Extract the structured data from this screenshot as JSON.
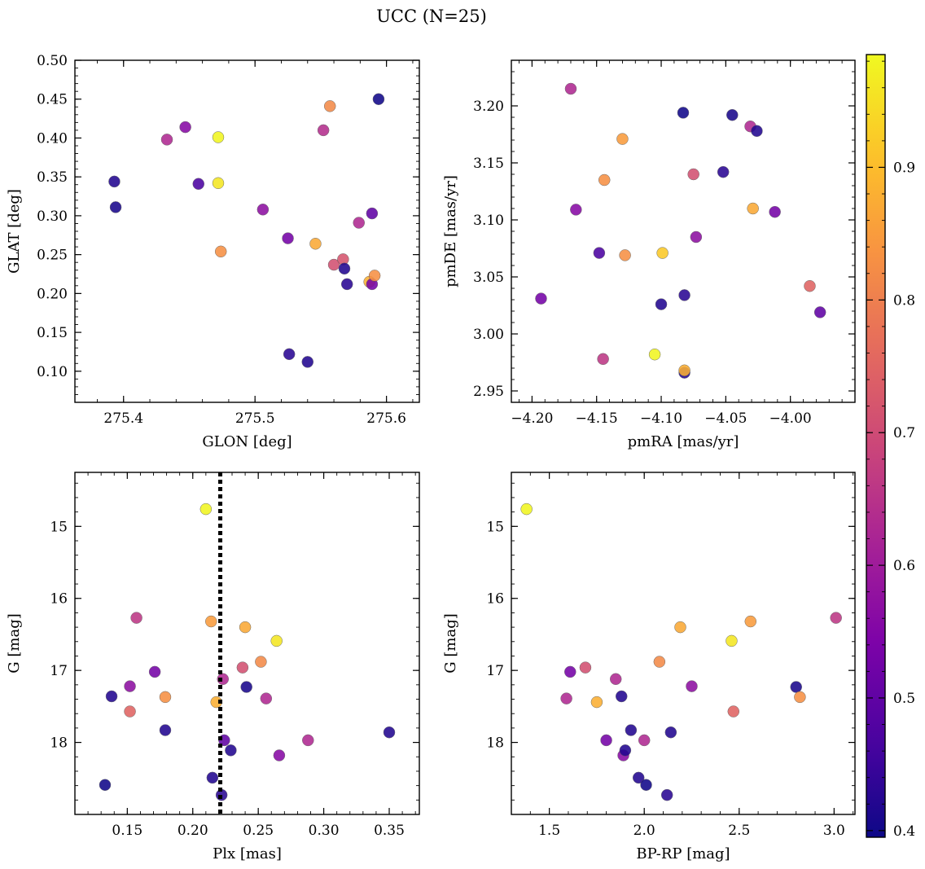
{
  "figure": {
    "title": "UCC (N=25)",
    "colorbar": {
      "range": [
        0.395,
        0.985
      ],
      "ticks": [
        0.4,
        0.5,
        0.6,
        0.7,
        0.8,
        0.9
      ],
      "tick_labels": [
        "0.4",
        "0.5",
        "0.6",
        "0.7",
        "0.8",
        "0.9"
      ],
      "colormap": "plasma"
    }
  },
  "chart_data": [
    {
      "type": "scatter",
      "xlabel": "GLON [deg]",
      "ylabel": "GLAT [deg]",
      "xlim": [
        275.363,
        275.625
      ],
      "ylim": [
        0.06,
        0.5
      ],
      "xticks": [
        275.4,
        275.5,
        275.6
      ],
      "xtick_labels": [
        "275.4",
        "275.5",
        "275.6"
      ],
      "xminor": 0.02,
      "yticks": [
        0.1,
        0.15,
        0.2,
        0.25,
        0.3,
        0.35,
        0.4,
        0.45,
        0.5
      ],
      "ytick_labels": [
        "0.10",
        "0.15",
        "0.20",
        "0.25",
        "0.30",
        "0.35",
        "0.40",
        "0.45",
        "0.50"
      ],
      "yminor": 0.01,
      "invert_y": false,
      "x": [
        275.393,
        275.394,
        275.433,
        275.447,
        275.457,
        275.472,
        275.472,
        275.474,
        275.506,
        275.525,
        275.526,
        275.54,
        275.546,
        275.552,
        275.557,
        275.56,
        275.567,
        275.568,
        275.57,
        275.579,
        275.587,
        275.589,
        275.589,
        275.591,
        275.594
      ],
      "y": [
        0.344,
        0.311,
        0.398,
        0.414,
        0.341,
        0.401,
        0.342,
        0.254,
        0.308,
        0.271,
        0.122,
        0.112,
        0.264,
        0.41,
        0.441,
        0.237,
        0.244,
        0.232,
        0.212,
        0.291,
        0.215,
        0.212,
        0.303,
        0.223,
        0.45
      ],
      "c": [
        0.42,
        0.41,
        0.63,
        0.56,
        0.47,
        0.98,
        0.96,
        0.83,
        0.57,
        0.53,
        0.43,
        0.42,
        0.87,
        0.64,
        0.82,
        0.71,
        0.72,
        0.42,
        0.43,
        0.63,
        0.88,
        0.53,
        0.5,
        0.83,
        0.4
      ]
    },
    {
      "type": "scatter",
      "xlabel": "pmRA [mas/yr]",
      "ylabel": "pmDE [mas/yr]",
      "xlim": [
        -4.216,
        -3.95
      ],
      "ylim": [
        2.94,
        3.24
      ],
      "xticks": [
        -4.2,
        -4.15,
        -4.1,
        -4.05,
        -4.0
      ],
      "xtick_labels": [
        "−4.20",
        "−4.15",
        "−4.10",
        "−4.05",
        "−4.00"
      ],
      "xminor": 0.01,
      "yticks": [
        2.95,
        3.0,
        3.05,
        3.1,
        3.15,
        3.2
      ],
      "ytick_labels": [
        "2.95",
        "3.00",
        "3.05",
        "3.10",
        "3.15",
        "3.20"
      ],
      "yminor": 0.01,
      "invert_y": false,
      "x": [
        -4.193,
        -4.17,
        -4.166,
        -4.148,
        -4.145,
        -4.144,
        -4.13,
        -4.128,
        -4.105,
        -4.1,
        -4.099,
        -4.083,
        -4.082,
        -4.082,
        -4.082,
        -4.075,
        -4.073,
        -4.052,
        -4.045,
        -4.031,
        -4.029,
        -4.026,
        -4.012,
        -3.985,
        -3.977
      ],
      "y": [
        3.031,
        3.215,
        3.109,
        3.071,
        2.978,
        3.135,
        3.171,
        3.069,
        2.982,
        3.026,
        3.071,
        3.194,
        3.034,
        2.966,
        2.968,
        3.14,
        3.085,
        3.142,
        3.192,
        3.182,
        3.11,
        3.178,
        3.107,
        3.042,
        3.019
      ],
      "c": [
        0.53,
        0.63,
        0.56,
        0.47,
        0.66,
        0.83,
        0.85,
        0.83,
        0.98,
        0.42,
        0.92,
        0.4,
        0.43,
        0.42,
        0.88,
        0.71,
        0.57,
        0.43,
        0.41,
        0.63,
        0.87,
        0.42,
        0.53,
        0.75,
        0.5
      ]
    },
    {
      "type": "scatter",
      "xlabel": "Plx [mas]",
      "ylabel": "G [mag]",
      "xlim": [
        0.11,
        0.373
      ],
      "ylim": [
        14.25,
        19.0
      ],
      "xticks": [
        0.15,
        0.2,
        0.25,
        0.3,
        0.35
      ],
      "xtick_labels": [
        "0.15",
        "0.20",
        "0.25",
        "0.30",
        "0.35"
      ],
      "xminor": 0.01,
      "yticks": [
        15,
        16,
        17,
        18
      ],
      "ytick_labels": [
        "15",
        "16",
        "17",
        "18"
      ],
      "yminor": 0.2,
      "invert_y": true,
      "vline": 0.221,
      "x": [
        0.133,
        0.138,
        0.152,
        0.152,
        0.157,
        0.171,
        0.179,
        0.179,
        0.21,
        0.214,
        0.215,
        0.218,
        0.222,
        0.223,
        0.224,
        0.229,
        0.238,
        0.24,
        0.241,
        0.252,
        0.256,
        0.264,
        0.266,
        0.288,
        0.35
      ],
      "y": [
        18.59,
        17.36,
        17.22,
        17.57,
        16.27,
        17.02,
        17.37,
        17.83,
        14.76,
        16.32,
        18.49,
        17.44,
        18.73,
        17.12,
        17.97,
        18.11,
        16.96,
        16.4,
        17.23,
        16.88,
        17.39,
        16.59,
        18.18,
        17.97,
        17.86
      ],
      "c": [
        0.4,
        0.42,
        0.57,
        0.75,
        0.66,
        0.53,
        0.83,
        0.42,
        0.98,
        0.85,
        0.42,
        0.88,
        0.43,
        0.63,
        0.5,
        0.42,
        0.71,
        0.87,
        0.41,
        0.82,
        0.63,
        0.96,
        0.56,
        0.63,
        0.42
      ]
    },
    {
      "type": "scatter",
      "xlabel": "BP-RP [mag]",
      "ylabel": "G [mag]",
      "xlim": [
        1.3,
        3.11
      ],
      "ylim": [
        14.25,
        19.0
      ],
      "xticks": [
        1.5,
        2.0,
        2.5,
        3.0
      ],
      "xtick_labels": [
        "1.5",
        "2.0",
        "2.5",
        "3.0"
      ],
      "xminor": 0.1,
      "yticks": [
        15,
        16,
        17,
        18
      ],
      "ytick_labels": [
        "15",
        "16",
        "17",
        "18"
      ],
      "yminor": 0.2,
      "invert_y": true,
      "x": [
        1.38,
        1.59,
        1.61,
        1.69,
        1.75,
        1.8,
        1.85,
        1.88,
        1.89,
        1.9,
        1.93,
        1.97,
        2.0,
        2.01,
        2.08,
        2.12,
        2.14,
        2.19,
        2.25,
        2.46,
        2.47,
        2.56,
        2.8,
        2.82,
        3.01
      ],
      "y": [
        14.76,
        17.39,
        17.02,
        16.96,
        17.44,
        17.97,
        17.12,
        17.36,
        18.18,
        18.11,
        17.83,
        18.49,
        17.97,
        18.59,
        16.88,
        18.73,
        17.86,
        16.4,
        17.22,
        16.59,
        17.57,
        16.32,
        17.23,
        17.37,
        16.27
      ],
      "c": [
        0.98,
        0.63,
        0.53,
        0.71,
        0.88,
        0.53,
        0.63,
        0.42,
        0.56,
        0.42,
        0.42,
        0.42,
        0.63,
        0.4,
        0.82,
        0.43,
        0.42,
        0.87,
        0.57,
        0.96,
        0.75,
        0.85,
        0.41,
        0.83,
        0.66
      ]
    }
  ]
}
